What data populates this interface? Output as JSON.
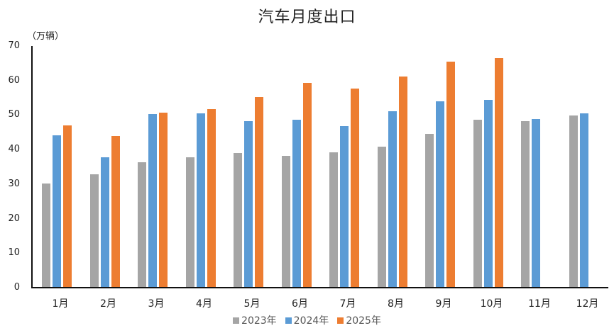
{
  "chart_data": {
    "type": "bar",
    "title": "汽车月度出口",
    "ylabel": "（万辆）",
    "xlabel": "",
    "ylim": [
      0,
      70
    ],
    "yticks": [
      0,
      10,
      20,
      30,
      40,
      50,
      60,
      70
    ],
    "grid": false,
    "legend_position": "bottom",
    "categories": [
      "1月",
      "2月",
      "3月",
      "4月",
      "5月",
      "6月",
      "7月",
      "8月",
      "9月",
      "10月",
      "11月",
      "12月"
    ],
    "series": [
      {
        "name": "2023年",
        "color": "#A5A5A5",
        "values": [
          30.2,
          32.9,
          36.3,
          37.7,
          39.0,
          38.2,
          39.2,
          40.9,
          44.6,
          48.7,
          48.3,
          49.9
        ]
      },
      {
        "name": "2024年",
        "color": "#5B9BD5",
        "values": [
          44.2,
          37.8,
          50.2,
          50.5,
          48.2,
          48.6,
          46.9,
          51.2,
          53.9,
          54.3,
          48.9,
          50.5
        ]
      },
      {
        "name": "2025年",
        "color": "#ED7D31",
        "values": [
          47.0,
          44.0,
          50.7,
          51.7,
          55.2,
          59.3,
          57.6,
          61.2,
          65.4,
          66.6,
          null,
          null
        ]
      }
    ]
  }
}
